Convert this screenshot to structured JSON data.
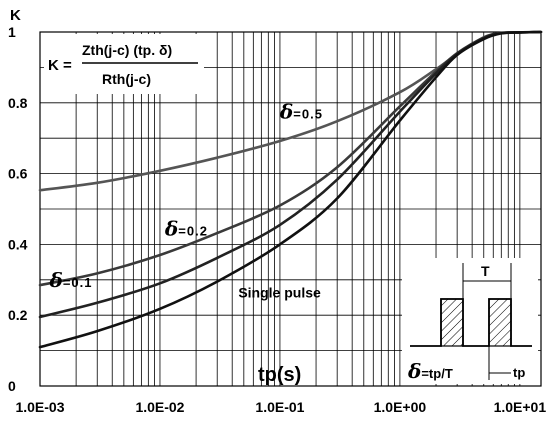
{
  "chart_data": {
    "type": "line",
    "x_scale": "log",
    "xlabel": "tp(s)",
    "ylabel": "K",
    "xlim": [
      0.001,
      15
    ],
    "ylim": [
      0,
      1
    ],
    "grid": true,
    "x_ticks": [
      "1.0E-03",
      "1.0E-02",
      "1.0E-01",
      "1.0E+00",
      "1.0E+01"
    ],
    "y_ticks": [
      "0",
      "0.2",
      "0.4",
      "0.6",
      "0.8",
      "1"
    ],
    "formula": {
      "lhs": "K =",
      "numerator": "Zth(j-c) (tp. δ)",
      "denominator": "Rth(j-c)"
    },
    "series": [
      {
        "name": "δ=0.5",
        "color": "#555555",
        "x": [
          0.001,
          0.003,
          0.01,
          0.03,
          0.1,
          0.3,
          1,
          2,
          3,
          5,
          7,
          10,
          15
        ],
        "y": [
          0.553,
          0.574,
          0.608,
          0.645,
          0.692,
          0.748,
          0.83,
          0.895,
          0.938,
          0.985,
          0.997,
          0.999,
          1.0
        ]
      },
      {
        "name": "δ=0.2",
        "color": "#3a3a3a",
        "x": [
          0.001,
          0.003,
          0.01,
          0.03,
          0.1,
          0.3,
          1,
          2,
          3,
          5,
          7,
          10,
          15
        ],
        "y": [
          0.285,
          0.318,
          0.37,
          0.432,
          0.51,
          0.618,
          0.79,
          0.888,
          0.94,
          0.984,
          0.997,
          0.999,
          1.0
        ]
      },
      {
        "name": "δ=0.1",
        "color": "#222222",
        "x": [
          0.001,
          0.003,
          0.01,
          0.03,
          0.1,
          0.3,
          1,
          2,
          3,
          5,
          7,
          10,
          15
        ],
        "y": [
          0.195,
          0.235,
          0.29,
          0.362,
          0.455,
          0.583,
          0.775,
          0.883,
          0.938,
          0.983,
          0.997,
          0.999,
          1.0
        ]
      },
      {
        "name": "Single pulse",
        "color": "#111111",
        "x": [
          0.001,
          0.003,
          0.01,
          0.03,
          0.1,
          0.3,
          1,
          2,
          3,
          5,
          7,
          10,
          15
        ],
        "y": [
          0.11,
          0.155,
          0.218,
          0.295,
          0.4,
          0.53,
          0.75,
          0.872,
          0.935,
          0.98,
          0.996,
          0.999,
          1.0
        ]
      }
    ],
    "curve_labels": [
      {
        "text": "δ=0.5",
        "delta": "δ",
        "value": "=0.5",
        "anchor_x": 0.1,
        "anchor_y": 0.755
      },
      {
        "text": "δ=0.2",
        "delta": "δ",
        "value": "=0.2",
        "anchor_x": 0.011,
        "anchor_y": 0.425
      },
      {
        "text": "δ=0.1",
        "delta": "δ",
        "value": "=0.1",
        "anchor_x": 0.0012,
        "anchor_y": 0.28
      },
      {
        "text": "Single pulse",
        "anchor_x": 0.045,
        "anchor_y": 0.25
      }
    ],
    "inset": {
      "period_label": "T",
      "formula": "δ=tp/T",
      "delta": "δ",
      "formula_rest": "=tp/T",
      "pulse_label": "tp"
    }
  }
}
